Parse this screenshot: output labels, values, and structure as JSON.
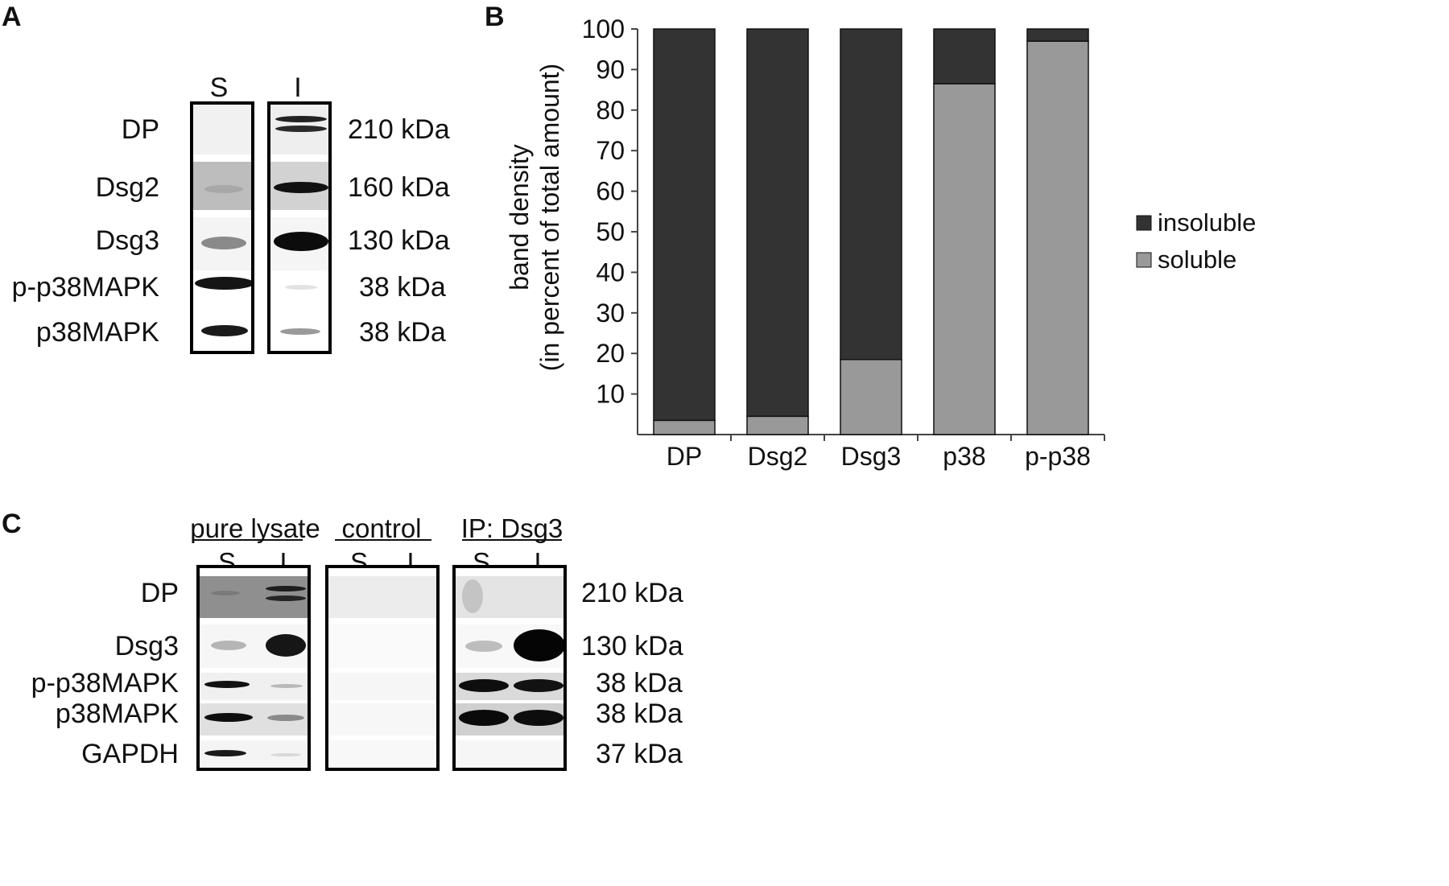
{
  "panelA": {
    "letter": "A",
    "lanes": [
      "S",
      "I"
    ],
    "rows": [
      {
        "label": "DP",
        "mw": "210 kDa"
      },
      {
        "label": "Dsg2",
        "mw": "160 kDa"
      },
      {
        "label": "Dsg3",
        "mw": "130 kDa"
      },
      {
        "label": "p-p38MAPK",
        "mw": "38 kDa"
      },
      {
        "label": "p38MAPK",
        "mw": "38 kDa"
      }
    ]
  },
  "panelB": {
    "letter": "B"
  },
  "panelC": {
    "letter": "C",
    "groups": [
      {
        "title": "pure lysate",
        "lanes": [
          "S",
          "I"
        ]
      },
      {
        "title": "control",
        "lanes": [
          "S",
          "I"
        ]
      },
      {
        "title": "IP: Dsg3",
        "lanes": [
          "S",
          "I"
        ]
      }
    ],
    "rows": [
      {
        "label": "DP",
        "mw": "210 kDa"
      },
      {
        "label": "Dsg3",
        "mw": "130 kDa"
      },
      {
        "label": "p-p38MAPK",
        "mw": "38 kDa"
      },
      {
        "label": "p38MAPK",
        "mw": "38 kDa"
      },
      {
        "label": "GAPDH",
        "mw": "37 kDa"
      }
    ]
  },
  "chart_data": {
    "type": "bar",
    "stacked": true,
    "categories": [
      "DP",
      "Dsg2",
      "Dsg3",
      "p38",
      "p-p38"
    ],
    "series": [
      {
        "name": "soluble",
        "values": [
          3.5,
          4.5,
          18.5,
          86.5,
          97
        ],
        "color": "#999999"
      },
      {
        "name": "insoluble",
        "values": [
          96.5,
          95.5,
          81.5,
          13.5,
          3
        ],
        "color": "#333333"
      }
    ],
    "ylabel_line1": "band density",
    "ylabel_line2": "(in percent of total amount)",
    "ylim": [
      0,
      100
    ],
    "yticks": [
      10,
      20,
      30,
      40,
      50,
      60,
      70,
      80,
      90,
      100
    ],
    "legend_order": [
      "insoluble",
      "soluble"
    ],
    "legend_position": "right",
    "grid": false
  }
}
